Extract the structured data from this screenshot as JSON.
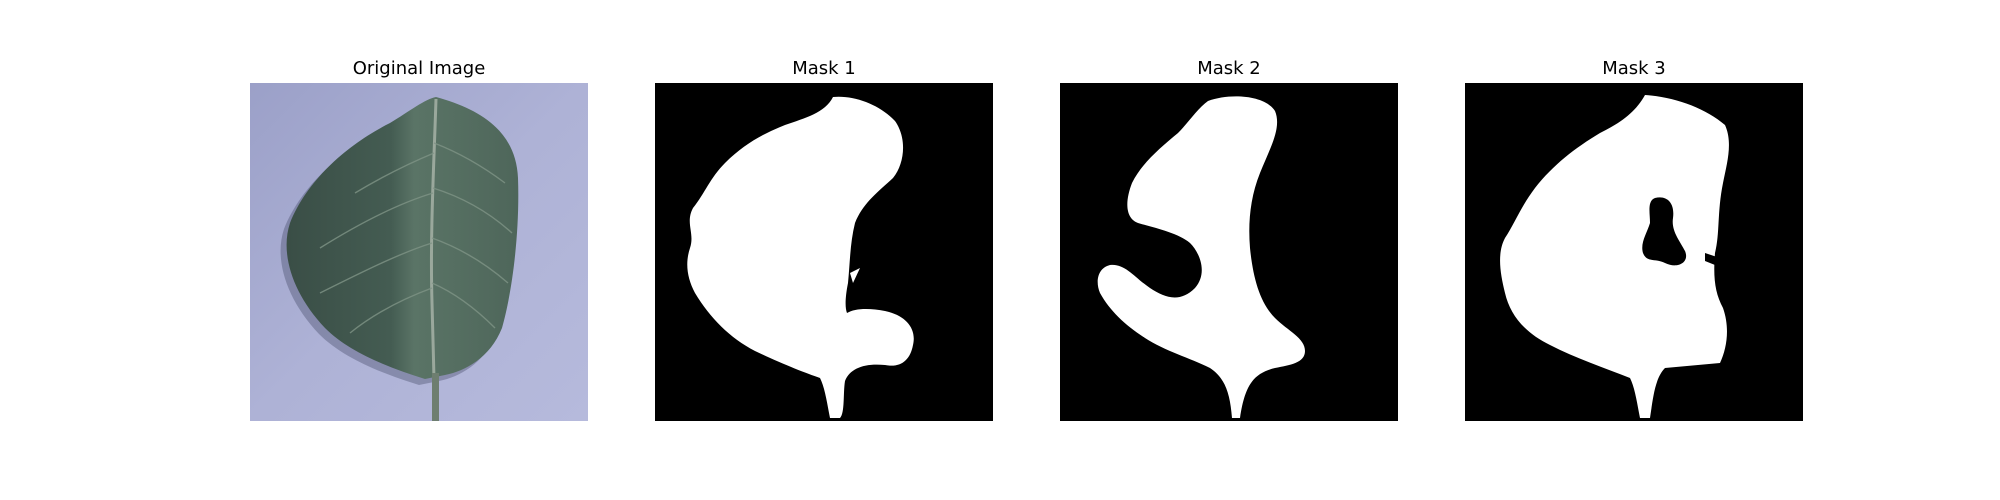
{
  "figure": {
    "panels": [
      {
        "title": "Original Image",
        "kind": "photo"
      },
      {
        "title": "Mask 1",
        "kind": "mask"
      },
      {
        "title": "Mask 2",
        "kind": "mask"
      },
      {
        "title": "Mask 3",
        "kind": "mask"
      }
    ]
  },
  "colors": {
    "photo_background": "#a9aed0",
    "leaf_dark": "#3b5048",
    "leaf_light": "#5d7568",
    "mask_background": "#000000",
    "mask_foreground": "#ffffff"
  }
}
